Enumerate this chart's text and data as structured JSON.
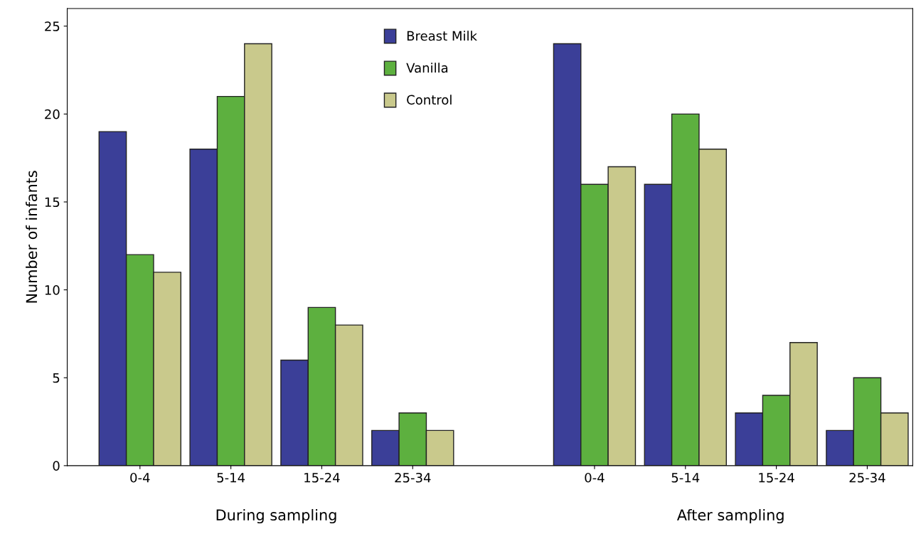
{
  "chart_data": {
    "type": "bar",
    "ylabel": "Number of infants",
    "categories": [
      "0-4",
      "5-14",
      "15-24",
      "25-34",
      null,
      "0-4",
      "5-14",
      "15-24",
      "25-34"
    ],
    "series": [
      {
        "name": "Breast Milk",
        "color": "#3b3f98",
        "values": [
          19,
          18,
          6,
          2,
          null,
          24,
          16,
          3,
          2
        ]
      },
      {
        "name": "Vanilla",
        "color": "#5db03f",
        "values": [
          12,
          21,
          9,
          3,
          null,
          16,
          20,
          4,
          5
        ]
      },
      {
        "name": "Control",
        "color": "#c9c98c",
        "values": [
          11,
          24,
          8,
          2,
          null,
          17,
          18,
          7,
          3
        ]
      }
    ],
    "annotations": [
      "During sampling",
      "After sampling"
    ],
    "ylim": [
      0,
      26
    ],
    "yticks": [
      0,
      5,
      10,
      15,
      20,
      25
    ],
    "grid": false,
    "legend": "top"
  }
}
